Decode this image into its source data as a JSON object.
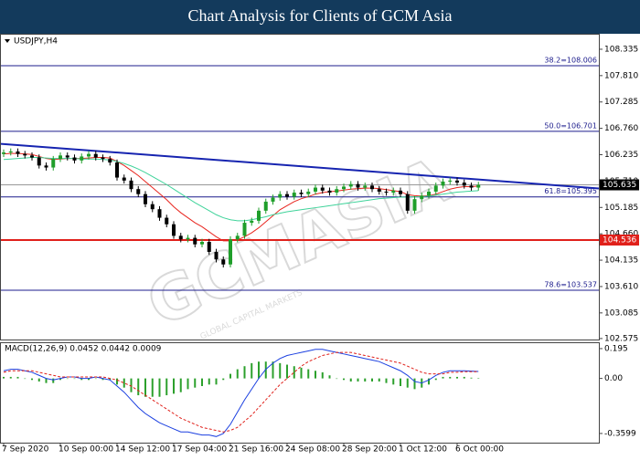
{
  "chart_data": {
    "type": "candlestick",
    "title": "Chart Analysis for Clients of GCM Asia",
    "symbol": "USDJPY,H4",
    "watermark": "GCMASIA",
    "watermark_sub": "GLOBAL CAPITAL MARKETS",
    "categories": [
      "7 Sep 2020",
      null,
      null,
      null,
      null,
      null,
      null,
      null,
      "10 Sep 00:00",
      null,
      null,
      null,
      null,
      null,
      null,
      null,
      "14 Sep 12:00",
      null,
      null,
      null,
      null,
      null,
      null,
      null,
      "17 Sep 04:00",
      null,
      null,
      null,
      null,
      null,
      null,
      null,
      "21 Sep 16:00",
      null,
      null,
      null,
      null,
      null,
      null,
      null,
      "24 Sep 08:00",
      null,
      null,
      null,
      null,
      null,
      null,
      null,
      "28 Sep 20:00",
      null,
      null,
      null,
      null,
      null,
      null,
      null,
      "1 Oct 12:00",
      null,
      null,
      null,
      null,
      null,
      null,
      null,
      "6 Oct 00:00",
      null,
      null,
      null
    ],
    "open": [
      106.25,
      106.28,
      106.3,
      106.25,
      106.22,
      106.18,
      106.02,
      105.98,
      106.15,
      106.22,
      106.18,
      106.12,
      106.2,
      106.25,
      106.18,
      106.15,
      106.08,
      105.78,
      105.72,
      105.55,
      105.45,
      105.25,
      105.15,
      104.98,
      104.85,
      104.62,
      104.55,
      104.58,
      104.45,
      104.5,
      104.3,
      104.15,
      104.05,
      104.55,
      104.62,
      104.88,
      104.92,
      105.12,
      105.3,
      105.38,
      105.45,
      105.4,
      105.48,
      105.45,
      105.5,
      105.58,
      105.52,
      105.48,
      105.55,
      105.6,
      105.65,
      105.58,
      105.62,
      105.55,
      105.5,
      105.48,
      105.52,
      105.45,
      105.12,
      105.35,
      105.42,
      105.5,
      105.62,
      105.7,
      105.72,
      105.68,
      105.62,
      105.58
    ],
    "high": [
      106.34,
      106.36,
      106.36,
      106.31,
      106.28,
      106.24,
      106.08,
      106.21,
      106.28,
      106.28,
      106.24,
      106.26,
      106.31,
      106.31,
      106.24,
      106.21,
      106.14,
      105.84,
      105.78,
      105.61,
      105.51,
      105.31,
      105.21,
      105.04,
      104.91,
      104.68,
      104.64,
      104.64,
      104.56,
      104.56,
      104.36,
      104.21,
      104.61,
      104.68,
      104.94,
      104.98,
      105.18,
      105.36,
      105.44,
      105.51,
      105.51,
      105.54,
      105.54,
      105.56,
      105.64,
      105.64,
      105.58,
      105.61,
      105.66,
      105.71,
      105.71,
      105.68,
      105.68,
      105.61,
      105.56,
      105.58,
      105.58,
      105.51,
      105.41,
      105.48,
      105.56,
      105.68,
      105.76,
      105.78,
      105.78,
      105.74,
      105.68,
      105.695
    ],
    "low": [
      106.19,
      106.22,
      106.19,
      106.16,
      106.12,
      105.96,
      105.92,
      105.92,
      106.09,
      106.12,
      106.06,
      106.06,
      106.14,
      106.12,
      106.09,
      106.02,
      105.72,
      105.66,
      105.49,
      105.39,
      105.19,
      105.09,
      104.92,
      104.79,
      104.56,
      104.49,
      104.49,
      104.39,
      104.39,
      104.24,
      104.09,
      103.99,
      103.99,
      104.49,
      104.56,
      104.82,
      104.86,
      105.06,
      105.24,
      105.32,
      105.34,
      105.34,
      105.39,
      105.39,
      105.44,
      105.46,
      105.42,
      105.42,
      105.49,
      105.54,
      105.52,
      105.52,
      105.49,
      105.44,
      105.42,
      105.42,
      105.39,
      105.06,
      105.06,
      105.29,
      105.36,
      105.44,
      105.56,
      105.64,
      105.62,
      105.56,
      105.52,
      105.52
    ],
    "close": [
      106.28,
      106.3,
      106.25,
      106.22,
      106.18,
      106.02,
      105.98,
      106.15,
      106.22,
      106.18,
      106.12,
      106.2,
      106.25,
      106.18,
      106.15,
      106.08,
      105.78,
      105.72,
      105.55,
      105.45,
      105.25,
      105.15,
      104.98,
      104.85,
      104.62,
      104.55,
      104.58,
      104.45,
      104.5,
      104.3,
      104.15,
      104.05,
      104.55,
      104.62,
      104.88,
      104.92,
      105.12,
      105.3,
      105.38,
      105.45,
      105.4,
      105.48,
      105.45,
      105.5,
      105.58,
      105.52,
      105.48,
      105.55,
      105.6,
      105.65,
      105.58,
      105.62,
      105.55,
      105.5,
      105.48,
      105.52,
      105.45,
      105.12,
      105.35,
      105.42,
      105.5,
      105.62,
      105.7,
      105.72,
      105.68,
      105.62,
      105.58,
      105.635
    ],
    "up_color": "#1f9e2a",
    "down_color": "#000000",
    "moving_averages": [
      {
        "color": "#e8261f",
        "values": [
          106.25,
          106.26,
          106.26,
          106.25,
          106.24,
          106.2,
          106.16,
          106.14,
          106.15,
          106.16,
          106.16,
          106.16,
          106.17,
          106.18,
          106.18,
          106.17,
          106.1,
          106.02,
          105.92,
          105.82,
          105.7,
          105.58,
          105.46,
          105.34,
          105.2,
          105.08,
          104.98,
          104.88,
          104.8,
          104.7,
          104.6,
          104.52,
          104.52,
          104.54,
          104.6,
          104.68,
          104.78,
          104.9,
          105.02,
          105.14,
          105.22,
          105.3,
          105.36,
          105.4,
          105.45,
          105.48,
          105.5,
          105.51,
          105.53,
          105.55,
          105.56,
          105.57,
          105.57,
          105.56,
          105.54,
          105.52,
          105.5,
          105.44,
          105.42,
          105.41,
          105.42,
          105.45,
          105.5,
          105.55,
          105.58,
          105.6,
          105.6,
          105.61
        ]
      },
      {
        "color": "#3fd39a",
        "values": [
          106.14,
          106.15,
          106.16,
          106.17,
          106.18,
          106.18,
          106.17,
          106.16,
          106.16,
          106.16,
          106.16,
          106.15,
          106.15,
          106.15,
          106.14,
          106.13,
          106.1,
          106.06,
          106.01,
          105.95,
          105.88,
          105.8,
          105.72,
          105.64,
          105.55,
          105.46,
          105.37,
          105.28,
          105.2,
          105.12,
          105.04,
          104.98,
          104.94,
          104.92,
          104.92,
          104.94,
          104.97,
          105.0,
          105.04,
          105.07,
          105.1,
          105.12,
          105.14,
          105.16,
          105.18,
          105.2,
          105.22,
          105.24,
          105.26,
          105.28,
          105.3,
          105.32,
          105.34,
          105.36,
          105.37,
          105.38,
          105.39,
          105.39,
          105.4,
          105.4,
          105.41,
          105.43,
          105.45,
          105.47,
          105.49,
          105.5,
          105.51,
          105.52
        ]
      }
    ],
    "trendline": {
      "color": "#1624b0",
      "values": [
        106.451,
        105.563
      ]
    },
    "fib_color": "#1c1c8c",
    "fib_levels": [
      {
        "label": "38.2=108.006",
        "value": 108.006
      },
      {
        "label": "50.0=106.701",
        "value": 106.701
      },
      {
        "label": "61.8=105.395",
        "value": 105.395
      },
      {
        "label": "78.6=103.537",
        "value": 103.537
      }
    ],
    "support": {
      "value": 104.536,
      "color": "#e0201a"
    },
    "current_price": 105.635,
    "ylim": [
      102.555,
      108.625
    ],
    "yticks": [
      108.335,
      {
        "value": 107.81,
        "label": "107.810"
      },
      107.285,
      {
        "value": 106.76,
        "label": "106.760"
      },
      106.235,
      {
        "value": 105.71,
        "label": "105.710"
      },
      105.185,
      {
        "value": 104.66,
        "label": "104.660"
      },
      104.135,
      {
        "value": 103.61,
        "label": "103.610"
      },
      103.085,
      102.575
    ],
    "macd": {
      "label": "MACD(12,26,9) 0.0452 0.0442 0.0009",
      "ylim": [
        -0.42,
        0.2305
      ],
      "yticks": [
        0.195,
        {
          "value": 0,
          "label": "0.00"
        },
        -0.3599
      ],
      "histogram": {
        "color": "#2ca02c",
        "values": [
          0.01,
          0.01,
          0.01,
          0.0,
          -0.01,
          -0.02,
          -0.03,
          -0.03,
          -0.01,
          0.0,
          0.0,
          -0.01,
          -0.01,
          0.0,
          -0.01,
          -0.01,
          -0.04,
          -0.06,
          -0.09,
          -0.11,
          -0.12,
          -0.12,
          -0.12,
          -0.11,
          -0.1,
          -0.09,
          -0.07,
          -0.06,
          -0.05,
          -0.04,
          -0.04,
          -0.01,
          0.03,
          0.06,
          0.08,
          0.1,
          0.11,
          0.11,
          0.11,
          0.1,
          0.09,
          0.08,
          0.07,
          0.06,
          0.05,
          0.04,
          0.02,
          0.0,
          -0.01,
          -0.02,
          -0.02,
          -0.02,
          -0.02,
          -0.02,
          -0.03,
          -0.04,
          -0.05,
          -0.06,
          -0.07,
          -0.06,
          -0.04,
          -0.01,
          0.01,
          0.01,
          0.01,
          0.01,
          0.005,
          0.0009
        ]
      },
      "main": {
        "color": "#1a3fe0",
        "values": [
          0.05,
          0.06,
          0.06,
          0.05,
          0.04,
          0.02,
          0.0,
          -0.01,
          0.0,
          0.01,
          0.01,
          0.0,
          0.0,
          0.01,
          0.0,
          -0.01,
          -0.05,
          -0.09,
          -0.14,
          -0.19,
          -0.23,
          -0.26,
          -0.29,
          -0.31,
          -0.33,
          -0.35,
          -0.35,
          -0.36,
          -0.37,
          -0.37,
          -0.38,
          -0.36,
          -0.3,
          -0.22,
          -0.14,
          -0.07,
          0.0,
          0.06,
          0.1,
          0.13,
          0.15,
          0.16,
          0.17,
          0.18,
          0.19,
          0.19,
          0.18,
          0.17,
          0.16,
          0.15,
          0.14,
          0.13,
          0.12,
          0.11,
          0.09,
          0.07,
          0.05,
          0.02,
          -0.02,
          -0.03,
          -0.01,
          0.02,
          0.04,
          0.05,
          0.05,
          0.05,
          0.048,
          0.0452
        ]
      },
      "signal": {
        "color": "#e0201a",
        "values": [
          0.04,
          0.05,
          0.05,
          0.05,
          0.05,
          0.04,
          0.03,
          0.02,
          0.01,
          0.01,
          0.01,
          0.01,
          0.01,
          0.01,
          0.01,
          0.0,
          -0.01,
          -0.03,
          -0.05,
          -0.08,
          -0.11,
          -0.14,
          -0.17,
          -0.2,
          -0.23,
          -0.26,
          -0.28,
          -0.3,
          -0.32,
          -0.33,
          -0.34,
          -0.35,
          -0.34,
          -0.32,
          -0.28,
          -0.24,
          -0.19,
          -0.14,
          -0.09,
          -0.04,
          0.0,
          0.04,
          0.08,
          0.11,
          0.13,
          0.15,
          0.16,
          0.17,
          0.17,
          0.17,
          0.16,
          0.15,
          0.14,
          0.13,
          0.12,
          0.11,
          0.1,
          0.08,
          0.06,
          0.04,
          0.03,
          0.03,
          0.03,
          0.04,
          0.04,
          0.044,
          0.044,
          0.0442
        ]
      }
    }
  }
}
